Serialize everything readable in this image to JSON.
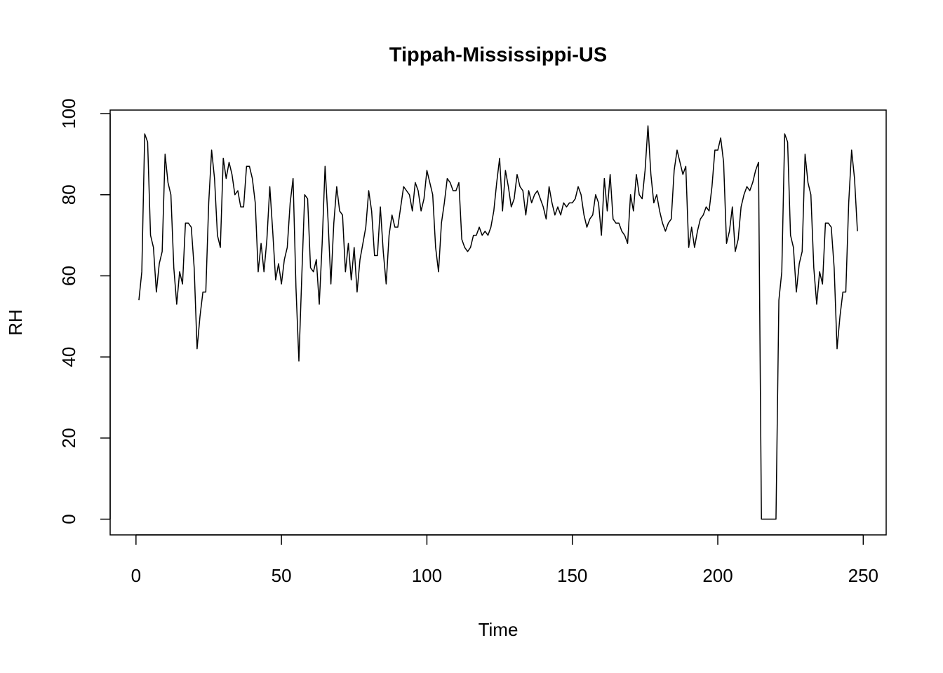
{
  "chart_data": {
    "type": "line",
    "title": "Tippah-Mississippi-US",
    "x_label": "Time",
    "y_label": "RH",
    "x": [
      1,
      2,
      3,
      4,
      5,
      6,
      7,
      8,
      9,
      10,
      11,
      12,
      13,
      14,
      15,
      16,
      17,
      18,
      19,
      20,
      21,
      22,
      23,
      24,
      25,
      26,
      27,
      28,
      29,
      30,
      31,
      32,
      33,
      34,
      35,
      36,
      37,
      38,
      39,
      40,
      41,
      42,
      43,
      44,
      45,
      46,
      47,
      48,
      49,
      50,
      51,
      52,
      53,
      54,
      55,
      56,
      57,
      58,
      59,
      60,
      61,
      62,
      63,
      64,
      65,
      66,
      67,
      68,
      69,
      70,
      71,
      72,
      73,
      74,
      75,
      76,
      77,
      78,
      79,
      80,
      81,
      82,
      83,
      84,
      85,
      86,
      87,
      88,
      89,
      90,
      91,
      92,
      93,
      94,
      95,
      96,
      97,
      98,
      99,
      100,
      101,
      102,
      103,
      104,
      105,
      106,
      107,
      108,
      109,
      110,
      111,
      112,
      113,
      114,
      115,
      116,
      117,
      118,
      119,
      120,
      121,
      122,
      123,
      124,
      125,
      126,
      127,
      128,
      129,
      130,
      131,
      132,
      133,
      134,
      135,
      136,
      137,
      138,
      139,
      140,
      141,
      142,
      143,
      144,
      145,
      146,
      147,
      148,
      149,
      150,
      151,
      152,
      153,
      154,
      155,
      156,
      157,
      158,
      159,
      160,
      161,
      162,
      163,
      164,
      165,
      166,
      167,
      168,
      169,
      170,
      171,
      172,
      173,
      174,
      175,
      176,
      177,
      178,
      179,
      180,
      181,
      182,
      183,
      184,
      185,
      186,
      187,
      188,
      189,
      190,
      191,
      192,
      193,
      194,
      195,
      196,
      197,
      198,
      199,
      200,
      201,
      202,
      203,
      204,
      205,
      206,
      207,
      208,
      209,
      210,
      211,
      212,
      213,
      214,
      215,
      216,
      217,
      218,
      219,
      220,
      221,
      222,
      223,
      224,
      225,
      226,
      227,
      228,
      229,
      230,
      231,
      232,
      233,
      234,
      235,
      236,
      237,
      238,
      239,
      240,
      241,
      242,
      243,
      244,
      245,
      246,
      247,
      248
    ],
    "series": [
      {
        "name": "RH",
        "color": "#000000",
        "values": [
          54,
          61,
          95,
          93,
          70,
          67,
          56,
          63,
          66,
          90,
          83,
          80,
          62,
          53,
          61,
          58,
          73,
          73,
          72,
          62,
          42,
          50,
          56,
          56,
          78,
          91,
          84,
          70,
          67,
          89,
          84,
          88,
          85,
          80,
          81,
          77,
          77,
          87,
          87,
          84,
          78,
          61,
          68,
          61,
          69,
          82,
          71,
          59,
          63,
          58,
          64,
          67,
          78,
          84,
          57,
          39,
          60,
          80,
          79,
          62,
          61,
          64,
          53,
          68,
          87,
          74,
          58,
          73,
          82,
          76,
          75,
          61,
          68,
          59,
          67,
          56,
          64,
          68,
          72,
          81,
          76,
          65,
          65,
          77,
          66,
          58,
          70,
          75,
          72,
          72,
          77,
          82,
          81,
          80,
          76,
          83,
          81,
          76,
          79,
          86,
          83,
          80,
          67,
          61,
          73,
          78,
          84,
          83,
          81,
          81,
          83,
          69,
          67,
          66,
          67,
          70,
          70,
          72,
          70,
          71,
          70,
          72,
          76,
          83,
          89,
          76,
          86,
          82,
          77,
          79,
          85,
          82,
          81,
          75,
          81,
          78,
          80,
          81,
          79,
          77,
          74,
          82,
          78,
          75,
          77,
          75,
          78,
          77,
          78,
          78,
          79,
          82,
          80,
          75,
          72,
          74,
          75,
          80,
          78,
          70,
          84,
          76,
          85,
          74,
          73,
          73,
          71,
          70,
          68,
          80,
          76,
          85,
          80,
          79,
          86,
          97,
          85,
          78,
          80,
          76,
          73,
          71,
          73,
          74,
          86,
          91,
          88,
          85,
          87,
          67,
          72,
          67,
          71,
          74,
          75,
          77,
          76,
          82,
          91,
          91,
          94,
          88,
          68,
          71,
          77,
          66,
          69,
          77,
          80,
          82,
          81,
          83,
          86,
          88,
          0,
          0,
          0,
          0,
          0,
          0,
          54,
          61,
          95,
          93,
          70,
          67,
          56,
          63,
          66,
          90,
          83,
          80,
          62,
          53,
          61,
          58,
          73,
          73,
          72,
          62,
          42,
          50,
          56,
          56,
          78,
          91,
          84,
          71
        ]
      }
    ],
    "xlim": [
      -8.88,
      257.88
    ],
    "ylim": [
      -3.88,
      100.88
    ],
    "xticks": [
      0,
      50,
      100,
      150,
      200,
      250
    ],
    "yticks": [
      0,
      20,
      40,
      60,
      80,
      100
    ]
  }
}
